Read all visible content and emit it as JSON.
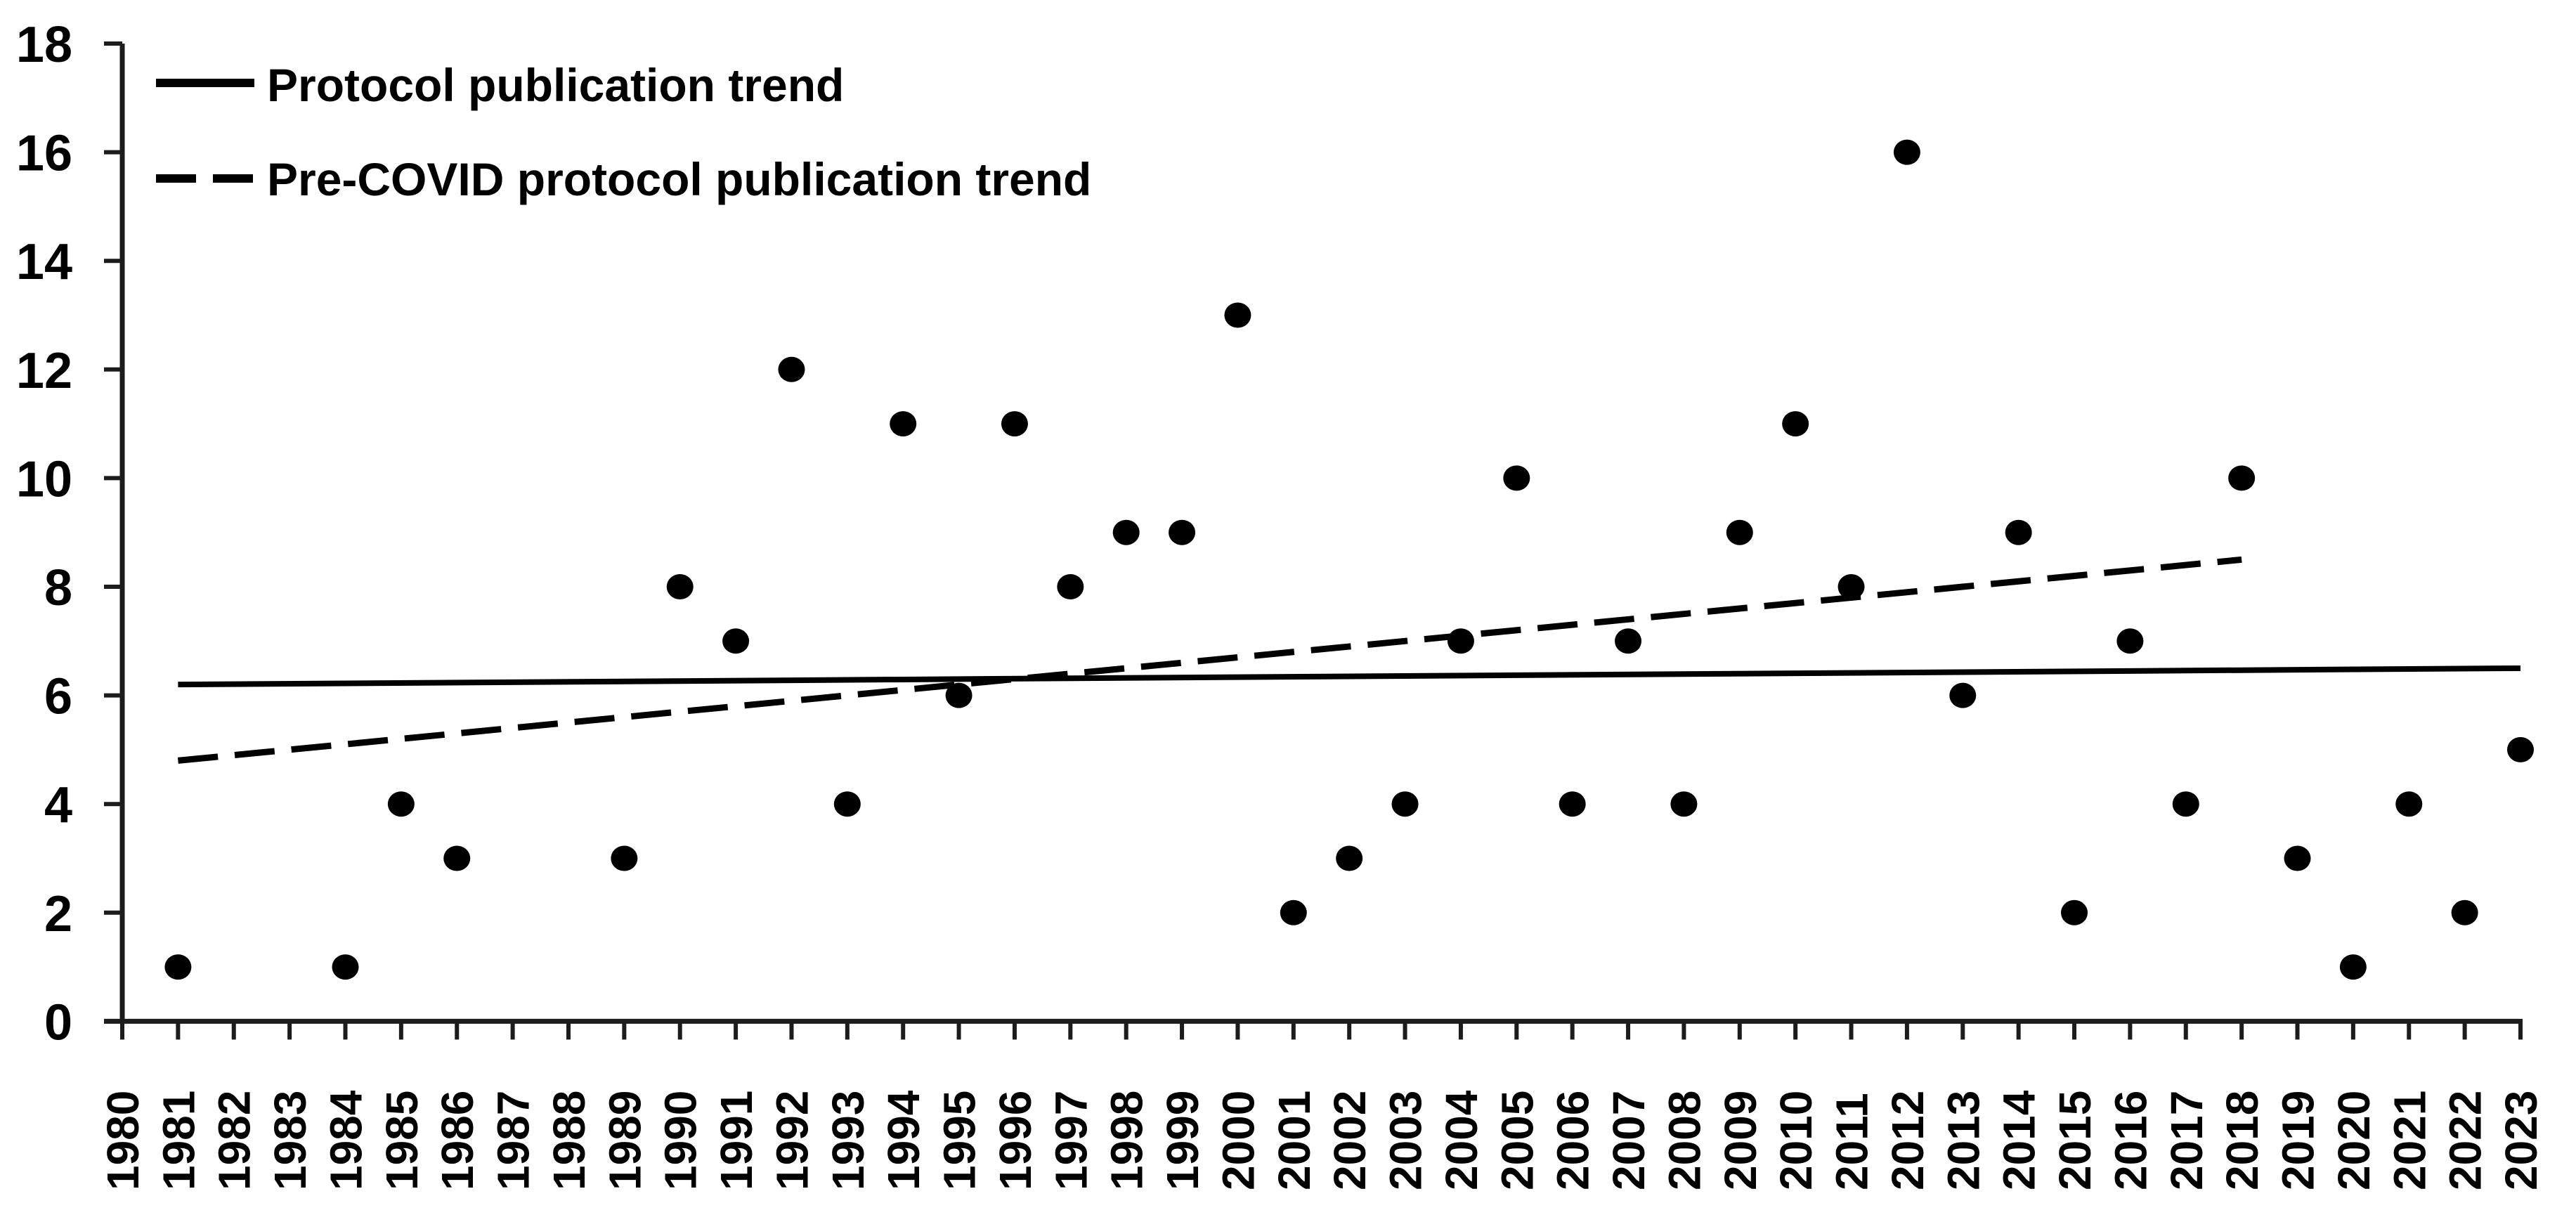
{
  "chart_data": {
    "type": "scatter",
    "ylim": [
      0,
      18
    ],
    "y_ticks": [
      0,
      2,
      4,
      6,
      8,
      10,
      12,
      14,
      16,
      18
    ],
    "x_tick_labels": [
      "1980",
      "1981",
      "1982",
      "1983",
      "1984",
      "1985",
      "1986",
      "1987",
      "1988",
      "1989",
      "1990",
      "1991",
      "1992",
      "1993",
      "1994",
      "1995",
      "1996",
      "1997",
      "1998",
      "1999",
      "2000",
      "2001",
      "2002",
      "2003",
      "2004",
      "2005",
      "2006",
      "2007",
      "2008",
      "2009",
      "2010",
      "2011",
      "2012",
      "2013",
      "2014",
      "2015",
      "2016",
      "2017",
      "2018",
      "2019",
      "2020",
      "2021",
      "2022",
      "2023"
    ],
    "grid": false,
    "legend_position": "top-left",
    "points": [
      [
        1981,
        1
      ],
      [
        1984,
        1
      ],
      [
        1985,
        4
      ],
      [
        1986,
        3
      ],
      [
        1989,
        3
      ],
      [
        1990,
        8
      ],
      [
        1991,
        7
      ],
      [
        1992,
        12
      ],
      [
        1993,
        4
      ],
      [
        1994,
        11
      ],
      [
        1995,
        6
      ],
      [
        1996,
        11
      ],
      [
        1997,
        8
      ],
      [
        1998,
        9
      ],
      [
        1999,
        9
      ],
      [
        2000,
        13
      ],
      [
        2001,
        2
      ],
      [
        2002,
        3
      ],
      [
        2003,
        4
      ],
      [
        2004,
        7
      ],
      [
        2005,
        10
      ],
      [
        2006,
        4
      ],
      [
        2007,
        7
      ],
      [
        2008,
        4
      ],
      [
        2009,
        9
      ],
      [
        2010,
        11
      ],
      [
        2011,
        8
      ],
      [
        2012,
        16
      ],
      [
        2013,
        6
      ],
      [
        2014,
        9
      ],
      [
        2015,
        2
      ],
      [
        2016,
        7
      ],
      [
        2017,
        4
      ],
      [
        2018,
        10
      ],
      [
        2019,
        3
      ],
      [
        2020,
        1
      ],
      [
        2021,
        4
      ],
      [
        2022,
        2
      ],
      [
        2023,
        5
      ]
    ],
    "trend_lines": [
      {
        "label": "Protocol publication trend",
        "line_style": "solid",
        "start_year": 1981,
        "start_value": 6.2,
        "end_year": 2023,
        "end_value": 6.5
      },
      {
        "label": "Pre-COVID protocol publication trend",
        "line_style": "dashed",
        "start_year": 1981,
        "start_value": 4.8,
        "end_year": 2018,
        "end_value": 8.5
      }
    ],
    "colors": {
      "marker": "#000000",
      "trend_line": "#000000",
      "axis": "#1c1c1c",
      "text": "#000000",
      "background": "#ffffff"
    }
  }
}
